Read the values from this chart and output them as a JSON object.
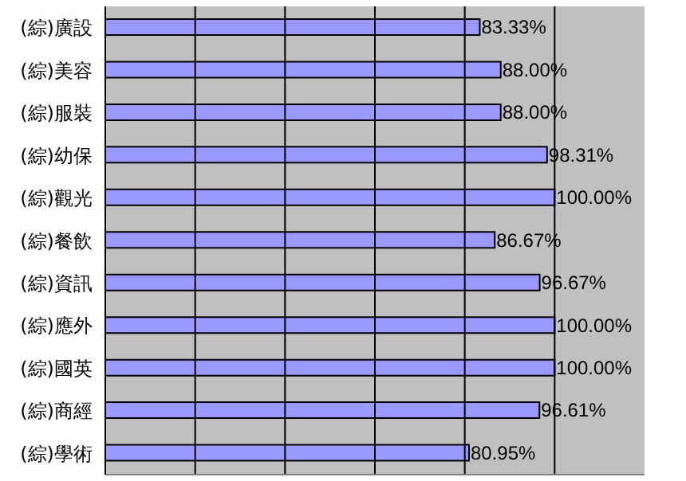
{
  "chart_data": {
    "type": "bar",
    "orientation": "horizontal",
    "categories": [
      "(綜)廣設",
      "(綜)美容",
      "(綜)服裝",
      "(綜)幼保",
      "(綜)觀光",
      "(綜)餐飲",
      "(綜)資訊",
      "(綜)應外",
      "(綜)國英",
      "(綜)商經",
      "(綜)學術"
    ],
    "values": [
      83.33,
      88.0,
      88.0,
      98.31,
      100.0,
      86.67,
      96.67,
      100.0,
      100.0,
      96.61,
      80.95
    ],
    "value_labels": [
      "83.33%",
      "88.00%",
      "88.00%",
      "98.31%",
      "100.00%",
      "86.67%",
      "96.67%",
      "100.00%",
      "100.00%",
      "96.61%",
      "80.95%"
    ],
    "color": "#9999ff",
    "xlim": [
      0,
      120
    ],
    "xticks": [
      {
        "value": 0,
        "label": null
      },
      {
        "value": 20,
        "label": null
      },
      {
        "value": 40,
        "label": null
      },
      {
        "value": 60,
        "label": null
      },
      {
        "value": 80,
        "label": null
      },
      {
        "value": 100,
        "label": null
      }
    ],
    "tick_labels": "y",
    "grid": "x",
    "legend": false
  }
}
